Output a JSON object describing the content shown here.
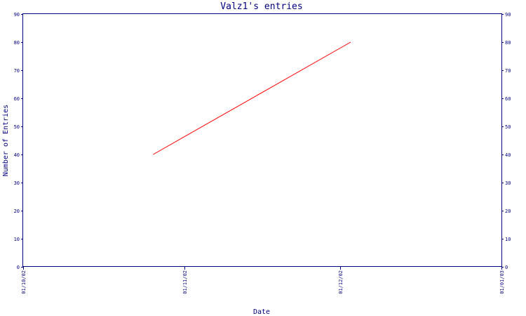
{
  "chart_data": {
    "type": "line",
    "title": "Valz1's entries",
    "xlabel": "Date",
    "ylabel": "Number of Entries",
    "x_ticks": [
      "01/10/02",
      "01/11/02",
      "01/12/02",
      "01/01/03"
    ],
    "xlim": [
      "01/10/02",
      "01/01/03"
    ],
    "ylim": [
      0,
      90
    ],
    "y_ticks": [
      0,
      10,
      20,
      30,
      40,
      50,
      60,
      70,
      80,
      90
    ],
    "series": [
      {
        "color": "#ff0000",
        "points": [
          {
            "x": "26/10/02",
            "y": 40
          },
          {
            "x": "03/12/02",
            "y": 80
          }
        ]
      }
    ],
    "grid": false,
    "legend": "none",
    "right_axis": true,
    "axis_color": "#000080",
    "text_color": "#000080"
  }
}
